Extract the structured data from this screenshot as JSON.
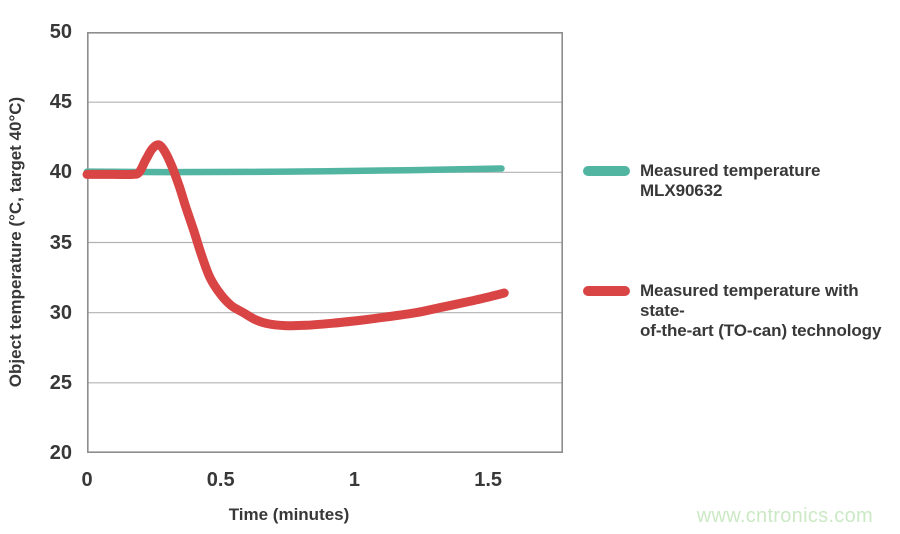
{
  "page": {
    "background": "#ffffff"
  },
  "watermark": {
    "text": "www.cntronics.com",
    "color": "#cbe9c4"
  },
  "chart_data": {
    "type": "line",
    "title": "",
    "xlabel": "Time (minutes)",
    "ylabel": "Object temperature (°C, target 40°C)",
    "xlim": [
      0,
      1.78
    ],
    "ylim": [
      20,
      50
    ],
    "grid": "horizontal",
    "grid_color": "#b2b2b2",
    "border_color": "#8d8d8d",
    "text_color": "#383838",
    "legend_position": "right",
    "x_ticks": [
      {
        "value": 0,
        "label": "0"
      },
      {
        "value": 0.5,
        "label": "0.5"
      },
      {
        "value": 1,
        "label": "1"
      },
      {
        "value": 1.5,
        "label": "1.5"
      }
    ],
    "y_ticks": [
      {
        "value": 50,
        "label": "50"
      },
      {
        "value": 45,
        "label": "45"
      },
      {
        "value": 40,
        "label": "40"
      },
      {
        "value": 35,
        "label": "35"
      },
      {
        "value": 30,
        "label": "30"
      },
      {
        "value": 25,
        "label": "25"
      },
      {
        "value": 20,
        "label": "20"
      }
    ],
    "series": [
      {
        "id": "mlx90632",
        "name": "Measured temperature MLX90632",
        "legend_lines": [
          "Measured temperature MLX90632"
        ],
        "color": "#52b5a2",
        "stroke_width": 6.5,
        "points": [
          [
            0,
            40.05
          ],
          [
            0.3,
            40.02
          ],
          [
            0.6,
            40.03
          ],
          [
            0.9,
            40.08
          ],
          [
            1.2,
            40.15
          ],
          [
            1.4,
            40.22
          ],
          [
            1.55,
            40.27
          ]
        ]
      },
      {
        "id": "to-can",
        "name": "Measured temperature with state-of-the-art (TO-can) technology",
        "legend_lines": [
          "Measured temperature with state-",
          "of-the-art (TO-can) technology"
        ],
        "color": "#d94545",
        "stroke_width": 9,
        "points": [
          [
            0,
            39.85
          ],
          [
            0.1,
            39.85
          ],
          [
            0.17,
            39.85
          ],
          [
            0.195,
            40.0
          ],
          [
            0.22,
            40.9
          ],
          [
            0.245,
            41.7
          ],
          [
            0.27,
            41.95
          ],
          [
            0.295,
            41.35
          ],
          [
            0.32,
            40.3
          ],
          [
            0.345,
            39.0
          ],
          [
            0.37,
            37.5
          ],
          [
            0.4,
            35.8
          ],
          [
            0.43,
            34.0
          ],
          [
            0.46,
            32.5
          ],
          [
            0.5,
            31.3
          ],
          [
            0.54,
            30.5
          ],
          [
            0.585,
            30.0
          ],
          [
            0.63,
            29.5
          ],
          [
            0.68,
            29.2
          ],
          [
            0.74,
            29.08
          ],
          [
            0.82,
            29.1
          ],
          [
            0.92,
            29.25
          ],
          [
            1.02,
            29.45
          ],
          [
            1.12,
            29.7
          ],
          [
            1.23,
            30.0
          ],
          [
            1.33,
            30.4
          ],
          [
            1.43,
            30.8
          ],
          [
            1.52,
            31.2
          ],
          [
            1.56,
            31.4
          ]
        ]
      }
    ]
  }
}
